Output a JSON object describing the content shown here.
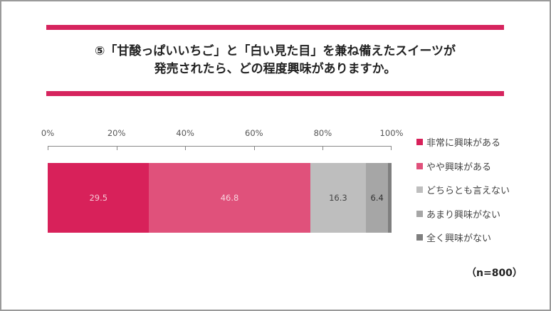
{
  "title": {
    "line1": "⑤「甘酸っぱいいちご」と「白い見た目」を兼ね備えたスイーツが",
    "line2": "発売されたら、どの程度興味がありますか。"
  },
  "accent_color": "#d6245e",
  "sample_note": "（n=800）",
  "chart_data": {
    "type": "bar",
    "orientation": "horizontal-stacked-100",
    "title": "⑤「甘酸っぱいいちご」と「白い見た目」を兼ね備えたスイーツが発売されたら、どの程度興味がありますか。",
    "xlabel": "",
    "ylabel": "",
    "xlim": [
      0,
      100
    ],
    "x_ticks": [
      "0%",
      "20%",
      "40%",
      "60%",
      "80%",
      "100%"
    ],
    "grid": false,
    "legend_position": "right",
    "categories": [
      ""
    ],
    "series": [
      {
        "name": "非常に興味がある",
        "values": [
          29.5
        ],
        "color": "#d8215a",
        "label": "29.5",
        "label_color": "#f6c7d5"
      },
      {
        "name": "やや興味がある",
        "values": [
          46.8
        ],
        "color": "#e0517b",
        "label": "46.8",
        "label_color": "#f8d3de"
      },
      {
        "name": "どちらとも言えない",
        "values": [
          16.3
        ],
        "color": "#bebebe",
        "label": "16.3",
        "label_color": "#444444"
      },
      {
        "name": "あまり興味がない",
        "values": [
          6.4
        ],
        "color": "#a6a6a6",
        "label": "6.4",
        "label_color": "#333333"
      },
      {
        "name": "全く興味がない",
        "values": [
          1.0
        ],
        "color": "#7f7f7f",
        "label": "",
        "label_color": "#333333"
      }
    ],
    "annotations": [
      "（n=800）"
    ]
  }
}
